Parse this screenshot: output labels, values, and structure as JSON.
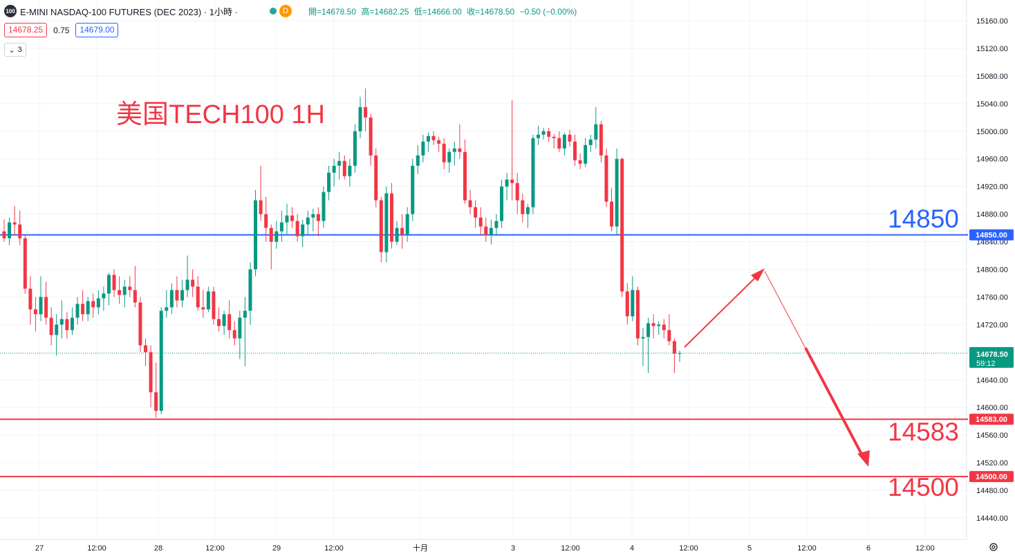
{
  "header": {
    "symbol_badge": "100",
    "title": "E-MINI NASDAQ-100 FUTURES (DEC 2023) · 1小時 ·",
    "interval_badge": "D",
    "ohlc": {
      "open": "開=14678.50",
      "high": "高=14682.25",
      "low": "低=14666.00",
      "close": "收=14678.50",
      "change": "−0.50 (−0.00%)"
    }
  },
  "trade": {
    "sell": "14678.25",
    "spread": "0.75",
    "buy": "14679.00"
  },
  "indicator_toggle": {
    "label": "3"
  },
  "colors": {
    "up": "#089981",
    "down": "#f23645",
    "blue": "#2962ff",
    "red": "#f23645"
  },
  "chart_data": {
    "type": "candlestick",
    "title": "美国TECH100 1H",
    "ylim": [
      14420,
      15180
    ],
    "y_ticks": [
      "15160.00",
      "15120.00",
      "15080.00",
      "15040.00",
      "15000.00",
      "14960.00",
      "14920.00",
      "14880.00",
      "14840.00",
      "14800.00",
      "14760.00",
      "14720.00",
      "14680.00",
      "14640.00",
      "14600.00",
      "14560.00",
      "14520.00",
      "14480.00",
      "14440.00"
    ],
    "x_ticks": [
      "27",
      "12:00",
      "28",
      "12:00",
      "29",
      "12:00",
      "十月",
      "3",
      "12:00",
      "4",
      "12:00",
      "5",
      "12:00",
      "6",
      "12:00"
    ],
    "current_price": {
      "value": "14678.50",
      "countdown": "59:12"
    },
    "levels": [
      {
        "value": 14850,
        "tag": "14850.00",
        "label": "14850",
        "color": "#2962ff"
      },
      {
        "value": 14583,
        "tag": "14583.00",
        "label": "14583",
        "color": "#f23645"
      },
      {
        "value": 14500,
        "tag": "14500.00",
        "label": "14500",
        "color": "#f23645"
      }
    ],
    "candles": [
      [
        14855,
        14872,
        14840,
        14845
      ],
      [
        14845,
        14875,
        14835,
        14868
      ],
      [
        14868,
        14892,
        14850,
        14865
      ],
      [
        14865,
        14885,
        14835,
        14845
      ],
      [
        14845,
        14850,
        14765,
        14772
      ],
      [
        14772,
        14790,
        14720,
        14742
      ],
      [
        14742,
        14760,
        14710,
        14735
      ],
      [
        14735,
        14790,
        14725,
        14760
      ],
      [
        14760,
        14782,
        14720,
        14730
      ],
      [
        14730,
        14745,
        14690,
        14705
      ],
      [
        14705,
        14735,
        14675,
        14720
      ],
      [
        14720,
        14755,
        14700,
        14728
      ],
      [
        14728,
        14738,
        14700,
        14712
      ],
      [
        14712,
        14745,
        14705,
        14730
      ],
      [
        14730,
        14760,
        14720,
        14750
      ],
      [
        14750,
        14770,
        14725,
        14735
      ],
      [
        14735,
        14760,
        14725,
        14754
      ],
      [
        14754,
        14765,
        14730,
        14745
      ],
      [
        14745,
        14770,
        14735,
        14758
      ],
      [
        14758,
        14775,
        14740,
        14765
      ],
      [
        14765,
        14795,
        14748,
        14792
      ],
      [
        14792,
        14800,
        14760,
        14770
      ],
      [
        14770,
        14790,
        14750,
        14763
      ],
      [
        14763,
        14785,
        14745,
        14775
      ],
      [
        14775,
        14790,
        14760,
        14770
      ],
      [
        14770,
        14805,
        14745,
        14752
      ],
      [
        14752,
        14760,
        14680,
        14690
      ],
      [
        14690,
        14700,
        14660,
        14680
      ],
      [
        14680,
        14690,
        14600,
        14622
      ],
      [
        14622,
        14665,
        14585,
        14595
      ],
      [
        14595,
        14745,
        14590,
        14740
      ],
      [
        14740,
        14770,
        14730,
        14745
      ],
      [
        14745,
        14780,
        14735,
        14770
      ],
      [
        14770,
        14790,
        14745,
        14755
      ],
      [
        14755,
        14785,
        14745,
        14770
      ],
      [
        14770,
        14820,
        14760,
        14785
      ],
      [
        14785,
        14800,
        14760,
        14775
      ],
      [
        14775,
        14790,
        14740,
        14745
      ],
      [
        14745,
        14770,
        14730,
        14742
      ],
      [
        14742,
        14775,
        14738,
        14768
      ],
      [
        14768,
        14775,
        14720,
        14728
      ],
      [
        14728,
        14745,
        14710,
        14718
      ],
      [
        14718,
        14740,
        14705,
        14735
      ],
      [
        14735,
        14755,
        14700,
        14712
      ],
      [
        14712,
        14725,
        14690,
        14700
      ],
      [
        14700,
        14740,
        14670,
        14730
      ],
      [
        14730,
        14760,
        14660,
        14740
      ],
      [
        14740,
        14810,
        14720,
        14800
      ],
      [
        14800,
        14915,
        14790,
        14900
      ],
      [
        14900,
        14950,
        14870,
        14880
      ],
      [
        14880,
        14905,
        14840,
        14860
      ],
      [
        14860,
        14865,
        14800,
        14840
      ],
      [
        14840,
        14870,
        14830,
        14855
      ],
      [
        14855,
        14885,
        14840,
        14868
      ],
      [
        14868,
        14895,
        14850,
        14878
      ],
      [
        14878,
        14890,
        14860,
        14870
      ],
      [
        14870,
        14880,
        14840,
        14848
      ],
      [
        14848,
        14872,
        14832,
        14865
      ],
      [
        14865,
        14885,
        14850,
        14875
      ],
      [
        14875,
        14888,
        14855,
        14880
      ],
      [
        14880,
        14890,
        14848,
        14870
      ],
      [
        14870,
        14920,
        14860,
        14912
      ],
      [
        14912,
        14950,
        14900,
        14940
      ],
      [
        14940,
        14960,
        14920,
        14950
      ],
      [
        14950,
        14970,
        14930,
        14957
      ],
      [
        14957,
        14965,
        14930,
        14935
      ],
      [
        14935,
        14960,
        14920,
        14950
      ],
      [
        14950,
        15010,
        14940,
        15000
      ],
      [
        15000,
        15050,
        14990,
        15035
      ],
      [
        15035,
        15062,
        15000,
        15020
      ],
      [
        15020,
        15025,
        14950,
        14965
      ],
      [
        14965,
        14975,
        14890,
        14900
      ],
      [
        14900,
        14905,
        14810,
        14825
      ],
      [
        14825,
        14920,
        14810,
        14910
      ],
      [
        14910,
        14925,
        14830,
        14840
      ],
      [
        14840,
        14870,
        14835,
        14860
      ],
      [
        14860,
        14880,
        14830,
        14850
      ],
      [
        14850,
        14890,
        14840,
        14880
      ],
      [
        14880,
        14960,
        14870,
        14950
      ],
      [
        14950,
        14980,
        14938,
        14965
      ],
      [
        14965,
        14995,
        14955,
        14985
      ],
      [
        14985,
        14998,
        14970,
        14993
      ],
      [
        14993,
        15000,
        14980,
        14987
      ],
      [
        14987,
        14992,
        14970,
        14982
      ],
      [
        14982,
        14990,
        14945,
        14955
      ],
      [
        14955,
        14975,
        14940,
        14970
      ],
      [
        14970,
        14985,
        14950,
        14975
      ],
      [
        14975,
        15010,
        14960,
        14970
      ],
      [
        14970,
        14988,
        14895,
        14900
      ],
      [
        14900,
        14915,
        14880,
        14890
      ],
      [
        14890,
        14900,
        14860,
        14875
      ],
      [
        14875,
        14890,
        14850,
        14862
      ],
      [
        14862,
        14875,
        14840,
        14850
      ],
      [
        14850,
        14872,
        14836,
        14860
      ],
      [
        14860,
        14880,
        14850,
        14870
      ],
      [
        14870,
        14930,
        14860,
        14920
      ],
      [
        14920,
        14940,
        14900,
        14930
      ],
      [
        14930,
        15045,
        14900,
        14925
      ],
      [
        14925,
        14940,
        14880,
        14900
      ],
      [
        14900,
        14910,
        14868,
        14880
      ],
      [
        14880,
        14895,
        14860,
        14890
      ],
      [
        14890,
        14995,
        14880,
        14990
      ],
      [
        14990,
        15008,
        14980,
        14995
      ],
      [
        14995,
        15005,
        14988,
        15000
      ],
      [
        15000,
        15005,
        14985,
        14992
      ],
      [
        14992,
        14996,
        14975,
        14990
      ],
      [
        14990,
        15000,
        14970,
        14975
      ],
      [
        14975,
        14998,
        14965,
        14995
      ],
      [
        14995,
        15002,
        14978,
        14985
      ],
      [
        14985,
        14995,
        14950,
        14958
      ],
      [
        14958,
        14968,
        14945,
        14953
      ],
      [
        14953,
        14990,
        14948,
        14980
      ],
      [
        14980,
        14995,
        14970,
        14988
      ],
      [
        14988,
        15035,
        14975,
        15010
      ],
      [
        15010,
        15015,
        14955,
        14965
      ],
      [
        14965,
        14975,
        14890,
        14898
      ],
      [
        14898,
        14918,
        14855,
        14862
      ],
      [
        14862,
        14975,
        14850,
        14960
      ],
      [
        14960,
        14962,
        14760,
        14768
      ],
      [
        14768,
        14780,
        14720,
        14732
      ],
      [
        14732,
        14790,
        14725,
        14770
      ],
      [
        14770,
        14775,
        14690,
        14700
      ],
      [
        14700,
        14715,
        14660,
        14702
      ],
      [
        14702,
        14730,
        14650,
        14722
      ],
      [
        14722,
        14735,
        14700,
        14718
      ],
      [
        14718,
        14725,
        14705,
        14720
      ],
      [
        14720,
        14728,
        14700,
        14712
      ],
      [
        14712,
        14735,
        14690,
        14696
      ],
      [
        14696,
        14700,
        14650,
        14678
      ],
      [
        14678,
        14682,
        14666,
        14678.5
      ]
    ]
  }
}
